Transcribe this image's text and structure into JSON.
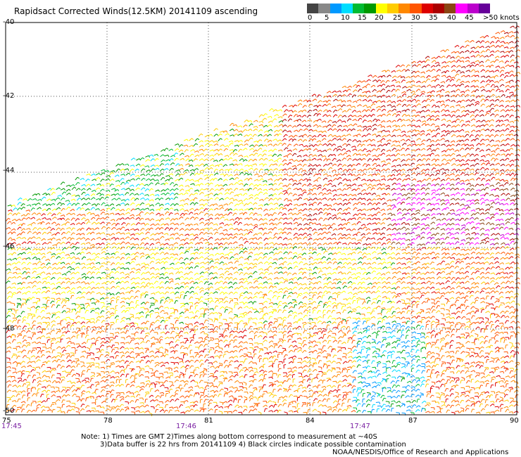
{
  "title": "Rapidsact Corrected Winds(12.5KM) 20141109 ascending",
  "colorbar": {
    "colors": [
      "#444444",
      "#888888",
      "#0099ff",
      "#00ddff",
      "#00bb33",
      "#009900",
      "#ffff00",
      "#ffcc00",
      "#ff8800",
      "#ff5500",
      "#dd0000",
      "#aa0000",
      "#8b4513",
      "#ff00ff",
      "#bb00cc",
      "#660099"
    ],
    "labels": [
      "0",
      "5",
      "10",
      "15",
      "20",
      "25",
      "30",
      "35",
      "40",
      "45"
    ],
    "max_label": ">50 knots"
  },
  "map": {
    "lat_labels": [
      "-40",
      "-42",
      "-44",
      "-46",
      "-48",
      "-50"
    ],
    "lon_labels": [
      "75",
      "78",
      "81",
      "84",
      "87",
      "90"
    ],
    "time_labels": [
      "17:45",
      "17:46",
      "17:47"
    ]
  },
  "notes": {
    "line1": "Note: 1) Times are GMT 2)Times along bottom correspond to measurement at ~40S",
    "line2": "3)Data buffer is 22 hrs from 20141109 4) Black circles indicate possible contamination",
    "credit": "NOAA/NESDIS/Office of Research and Applications"
  }
}
